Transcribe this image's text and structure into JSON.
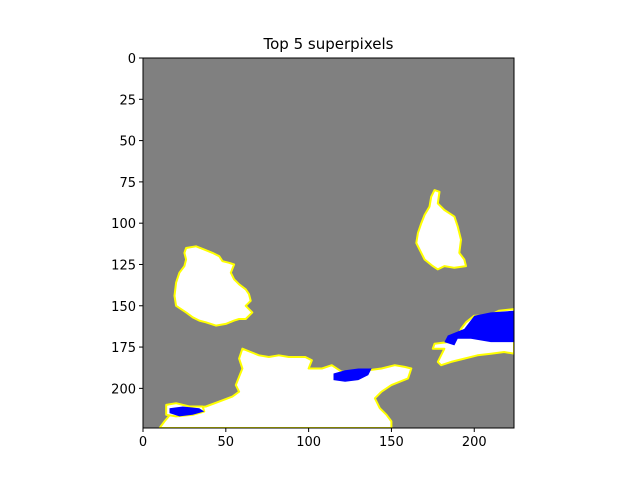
{
  "chart_data": {
    "type": "heatmap",
    "title": "Top 5 superpixels",
    "xlabel": "",
    "ylabel": "",
    "xlim": [
      0,
      224
    ],
    "ylim": [
      224,
      0
    ],
    "x_ticks": [
      0,
      50,
      100,
      150,
      200
    ],
    "y_ticks": [
      0,
      25,
      50,
      75,
      100,
      125,
      150,
      175,
      200
    ],
    "grid": false,
    "background_color": "#808080",
    "boundary_color": "#ffff00",
    "highlight_color": "#ffffff",
    "accent_color": "#0000ff",
    "superpixels": [
      {
        "id": "sp-upper-right",
        "outline": [
          [
            176,
            80
          ],
          [
            179,
            81
          ],
          [
            178,
            88
          ],
          [
            182,
            92
          ],
          [
            188,
            96
          ],
          [
            190,
            102
          ],
          [
            192,
            110
          ],
          [
            191,
            118
          ],
          [
            194,
            122
          ],
          [
            195,
            126
          ],
          [
            188,
            127
          ],
          [
            182,
            126
          ],
          [
            178,
            128
          ],
          [
            175,
            126
          ],
          [
            170,
            122
          ],
          [
            168,
            118
          ],
          [
            165,
            112
          ],
          [
            166,
            106
          ],
          [
            168,
            100
          ],
          [
            170,
            95
          ],
          [
            173,
            90
          ],
          [
            174,
            84
          ]
        ]
      },
      {
        "id": "sp-left-middle",
        "outline": [
          [
            26,
            115
          ],
          [
            32,
            114
          ],
          [
            37,
            116
          ],
          [
            42,
            118
          ],
          [
            46,
            120
          ],
          [
            48,
            123
          ],
          [
            52,
            124
          ],
          [
            55,
            125
          ],
          [
            53,
            130
          ],
          [
            55,
            134
          ],
          [
            58,
            137
          ],
          [
            62,
            140
          ],
          [
            64,
            143
          ],
          [
            65,
            147
          ],
          [
            62,
            150
          ],
          [
            66,
            154
          ],
          [
            62,
            158
          ],
          [
            58,
            158
          ],
          [
            55,
            159
          ],
          [
            50,
            161
          ],
          [
            44,
            162
          ],
          [
            38,
            160
          ],
          [
            34,
            159
          ],
          [
            30,
            157
          ],
          [
            26,
            154
          ],
          [
            20,
            150
          ],
          [
            19,
            144
          ],
          [
            20,
            136
          ],
          [
            22,
            130
          ],
          [
            25,
            126
          ],
          [
            26,
            122
          ],
          [
            25,
            118
          ]
        ]
      },
      {
        "id": "sp-bottom-center",
        "outline": [
          [
            60,
            176
          ],
          [
            65,
            178
          ],
          [
            70,
            180
          ],
          [
            76,
            181
          ],
          [
            82,
            180
          ],
          [
            88,
            181
          ],
          [
            98,
            181
          ],
          [
            102,
            183
          ],
          [
            100,
            188
          ],
          [
            108,
            188
          ],
          [
            114,
            186
          ],
          [
            120,
            190
          ],
          [
            128,
            190
          ],
          [
            136,
            189
          ],
          [
            144,
            188
          ],
          [
            152,
            186
          ],
          [
            158,
            187
          ],
          [
            162,
            188
          ],
          [
            160,
            194
          ],
          [
            150,
            198
          ],
          [
            144,
            202
          ],
          [
            140,
            206
          ],
          [
            143,
            212
          ],
          [
            147,
            216
          ],
          [
            150,
            220
          ],
          [
            150,
            224
          ],
          [
            10,
            224
          ],
          [
            13,
            220
          ],
          [
            18,
            214
          ],
          [
            28,
            212
          ],
          [
            38,
            211
          ],
          [
            46,
            208
          ],
          [
            54,
            205
          ],
          [
            58,
            202
          ],
          [
            56,
            198
          ],
          [
            58,
            193
          ],
          [
            60,
            188
          ],
          [
            58,
            182
          ]
        ]
      },
      {
        "id": "sp-right-edge",
        "outline": [
          [
            224,
            152
          ],
          [
            215,
            153
          ],
          [
            209,
            156
          ],
          [
            200,
            156
          ],
          [
            195,
            160
          ],
          [
            192,
            164
          ],
          [
            190,
            169
          ],
          [
            184,
            172
          ],
          [
            176,
            173
          ],
          [
            175,
            176
          ],
          [
            182,
            176
          ],
          [
            180,
            180
          ],
          [
            178,
            184
          ],
          [
            180,
            186
          ],
          [
            186,
            184
          ],
          [
            194,
            182
          ],
          [
            202,
            180
          ],
          [
            210,
            179
          ],
          [
            218,
            178
          ],
          [
            224,
            179
          ]
        ]
      },
      {
        "id": "sp-left-bottom-fragment",
        "outline": [
          [
            14,
            210
          ],
          [
            20,
            209
          ],
          [
            28,
            211
          ],
          [
            36,
            211
          ],
          [
            37,
            214
          ],
          [
            30,
            216
          ],
          [
            20,
            217
          ],
          [
            14,
            216
          ]
        ]
      }
    ],
    "blue_regions": [
      [
        [
          200,
          156
        ],
        [
          210,
          154
        ],
        [
          224,
          153
        ],
        [
          224,
          172
        ],
        [
          210,
          172
        ],
        [
          198,
          170
        ],
        [
          190,
          170
        ],
        [
          188,
          174
        ],
        [
          182,
          172
        ],
        [
          184,
          168
        ],
        [
          194,
          164
        ]
      ],
      [
        [
          115,
          191
        ],
        [
          122,
          189
        ],
        [
          130,
          188
        ],
        [
          138,
          188
        ],
        [
          136,
          192
        ],
        [
          130,
          195
        ],
        [
          122,
          196
        ],
        [
          115,
          195
        ]
      ],
      [
        [
          16,
          212
        ],
        [
          24,
          211
        ],
        [
          34,
          212
        ],
        [
          37,
          214
        ],
        [
          30,
          216
        ],
        [
          22,
          217
        ],
        [
          16,
          215
        ]
      ]
    ]
  }
}
